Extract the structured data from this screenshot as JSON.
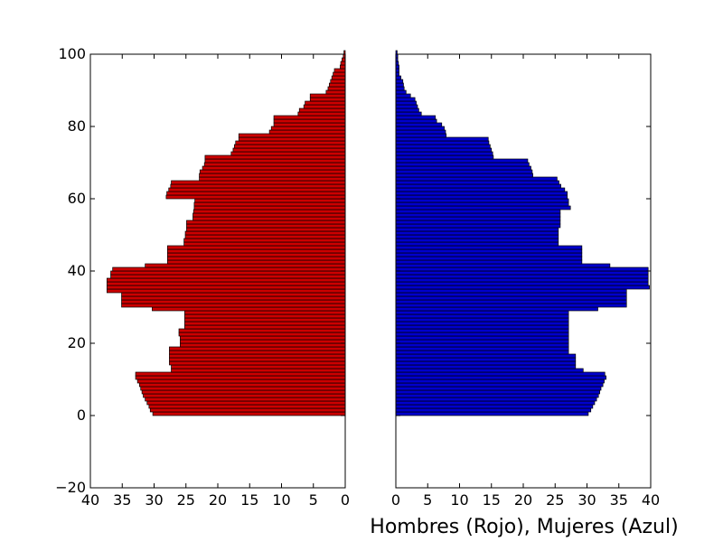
{
  "chart_data": {
    "type": "bar",
    "orientation": "horizontal",
    "layout": "population-pyramid",
    "xlabel": "Hombres (Rojo), Mujeres (Azul)",
    "ylim": [
      -20,
      100
    ],
    "y_ticks": [
      -20,
      0,
      20,
      40,
      60,
      80,
      100
    ],
    "y_tick_labels": [
      "−20",
      "0",
      "20",
      "40",
      "60",
      "80",
      "100"
    ],
    "grid": false,
    "panels": [
      {
        "side": "left",
        "xlim": [
          40,
          0
        ],
        "x_reversed": true,
        "x_ticks": [
          40,
          35,
          30,
          25,
          20,
          15,
          10,
          5,
          0
        ],
        "x_tick_labels": [
          "40",
          "35",
          "30",
          "25",
          "20",
          "15",
          "10",
          "5",
          "0"
        ],
        "series": [
          {
            "color": "#cc0000",
            "age_start": 0,
            "values": [
              30.2,
              30.6,
              30.8,
              31.1,
              31.4,
              31.7,
              31.9,
              32.1,
              32.3,
              32.6,
              32.9,
              32.9,
              27.3,
              27.3,
              27.6,
              27.6,
              27.6,
              27.6,
              27.6,
              25.9,
              25.9,
              25.9,
              26.1,
              26.1,
              25.2,
              25.2,
              25.2,
              25.2,
              25.2,
              30.3,
              35.1,
              35.1,
              35.1,
              35.1,
              37.4,
              37.4,
              37.4,
              37.4,
              36.8,
              36.8,
              36.5,
              31.4,
              27.9,
              27.9,
              27.9,
              27.9,
              27.9,
              25.3,
              25.3,
              25.1,
              25.1,
              24.9,
              24.9,
              24.9,
              23.9,
              23.9,
              23.8,
              23.7,
              23.7,
              23.6,
              28.1,
              28.0,
              27.7,
              27.4,
              27.3,
              22.9,
              22.9,
              22.8,
              22.4,
              22.1,
              22.0,
              22.0,
              17.9,
              17.6,
              17.4,
              17.2,
              16.7,
              16.7,
              11.9,
              11.6,
              11.2,
              11.2,
              11.2,
              7.4,
              7.2,
              6.5,
              6.3,
              5.5,
              5.5,
              3.0,
              2.7,
              2.5,
              2.3,
              2.1,
              1.9,
              1.7,
              0.8,
              0.7,
              0.5,
              0.3,
              0.2
            ]
          }
        ]
      },
      {
        "side": "right",
        "xlim": [
          0,
          40
        ],
        "x_reversed": false,
        "x_ticks": [
          0,
          5,
          10,
          15,
          20,
          25,
          30,
          35,
          40
        ],
        "x_tick_labels": [
          "0",
          "5",
          "10",
          "15",
          "20",
          "25",
          "30",
          "35",
          "40"
        ],
        "series": [
          {
            "color": "#0000cc",
            "age_start": 0,
            "values": [
              30.2,
              30.6,
              30.9,
              31.2,
              31.5,
              31.8,
              32.0,
              32.2,
              32.5,
              32.7,
              33.0,
              32.8,
              29.4,
              28.2,
              28.2,
              28.2,
              28.2,
              27.1,
              27.1,
              27.1,
              27.1,
              27.1,
              27.1,
              27.1,
              27.1,
              27.1,
              27.1,
              27.1,
              27.1,
              31.7,
              36.2,
              36.2,
              36.2,
              36.2,
              36.2,
              39.8,
              39.6,
              39.6,
              39.6,
              39.6,
              39.6,
              33.6,
              29.2,
              29.2,
              29.2,
              29.2,
              29.2,
              25.5,
              25.5,
              25.5,
              25.5,
              25.5,
              25.8,
              25.8,
              25.8,
              25.8,
              25.8,
              27.4,
              27.1,
              27.1,
              26.9,
              26.9,
              26.5,
              25.9,
              25.6,
              25.3,
              21.5,
              21.4,
              21.2,
              20.9,
              20.7,
              15.3,
              15.2,
              15.0,
              14.8,
              14.6,
              14.5,
              7.9,
              7.8,
              7.6,
              7.2,
              6.4,
              6.2,
              4.0,
              3.6,
              3.4,
              3.2,
              3.0,
              2.3,
              1.6,
              1.3,
              1.2,
              1.1,
              0.8,
              0.5,
              0.5,
              0.5,
              0.4,
              0.3,
              0.3,
              0.2
            ]
          }
        ]
      }
    ]
  }
}
